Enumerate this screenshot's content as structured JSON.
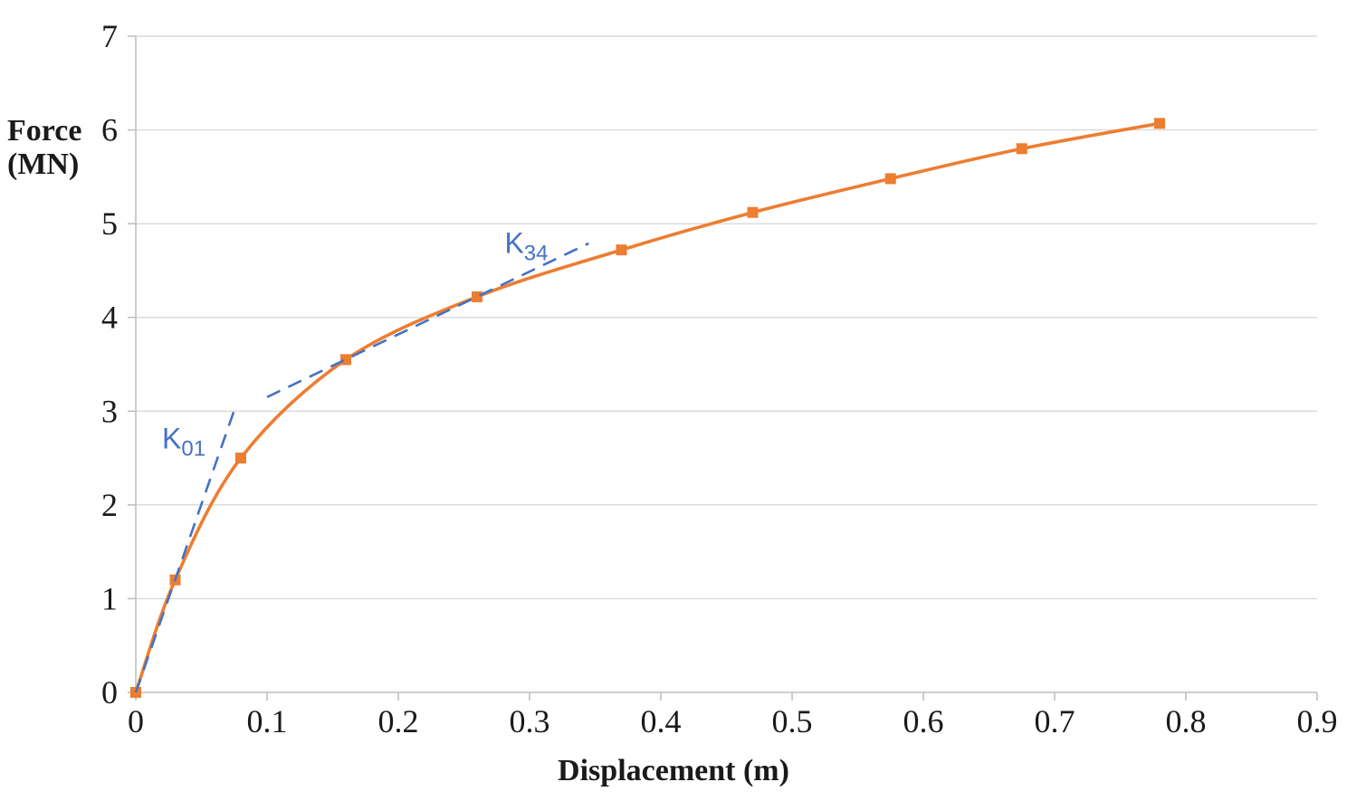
{
  "chart_data": {
    "type": "line",
    "title": "",
    "xlabel": "Displacement (m)",
    "ylabel": "Force (MN)",
    "ylabel_lines": [
      "Force",
      "(MN)"
    ],
    "xlim": [
      0,
      0.9
    ],
    "ylim": [
      0,
      7
    ],
    "x_ticks": [
      "0",
      "0.1",
      "0.2",
      "0.3",
      "0.4",
      "0.5",
      "0.6",
      "0.7",
      "0.8",
      "0.9"
    ],
    "y_ticks": [
      "0",
      "1",
      "2",
      "3",
      "4",
      "5",
      "6",
      "7"
    ],
    "grid": "horizontal",
    "legend": "none",
    "colors": {
      "curve": "#ED7D31",
      "tangent": "#4472C4",
      "grid": "#D9D9D9",
      "axis": "#BFBFBF",
      "text": "#1a1a1a"
    },
    "series": [
      {
        "name": "force-displacement-curve",
        "color": "#ED7D31",
        "style": "solid",
        "marker": "square",
        "points": [
          [
            0,
            0
          ],
          [
            0.03,
            1.2
          ],
          [
            0.08,
            2.5
          ],
          [
            0.16,
            3.55
          ],
          [
            0.26,
            4.22
          ],
          [
            0.37,
            4.72
          ],
          [
            0.47,
            5.12
          ],
          [
            0.575,
            5.48
          ],
          [
            0.675,
            5.8
          ],
          [
            0.78,
            6.07
          ]
        ]
      },
      {
        "name": "k01-tangent",
        "color": "#4472C4",
        "style": "dashed",
        "marker": "none",
        "points": [
          [
            0,
            0
          ],
          [
            0.076,
            3.05
          ]
        ]
      },
      {
        "name": "k34-tangent",
        "color": "#4472C4",
        "style": "dashed",
        "marker": "none",
        "points": [
          [
            0.1,
            3.15
          ],
          [
            0.345,
            4.79
          ]
        ]
      }
    ],
    "annotations": [
      {
        "name": "k01-label",
        "label": "K",
        "subscript": "01",
        "x": 0.02,
        "y": 2.6,
        "color": "#4472C4"
      },
      {
        "name": "k34-label",
        "label": "K",
        "subscript": "34",
        "x": 0.281,
        "y": 4.69,
        "color": "#4472C4"
      }
    ]
  }
}
